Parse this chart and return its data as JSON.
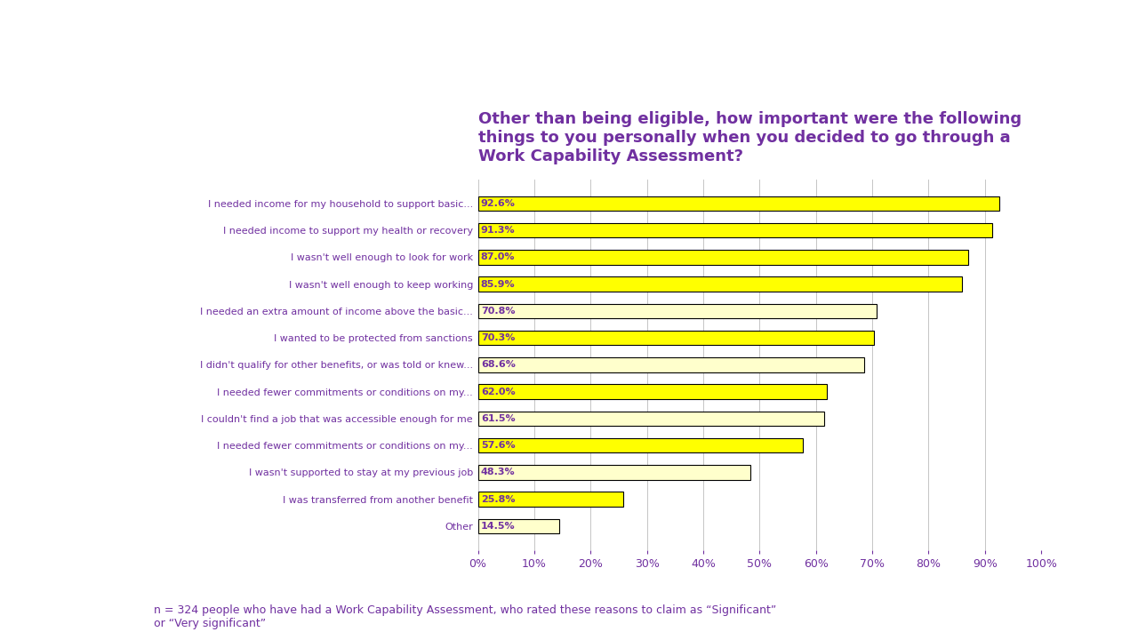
{
  "title": "Other than being eligible, how important were the following\nthings to you personally when you decided to go through a\nWork Capability Assessment?",
  "title_color": "#7030A0",
  "title_fontsize": 13,
  "categories": [
    "I needed income for my household to support basic...",
    "I needed income to support my health or recovery",
    "I wasn't well enough to look for work",
    "I wasn't well enough to keep working",
    "I needed an extra amount of income above the basic...",
    "I wanted to be protected from sanctions",
    "I didn't qualify for other benefits, or was told or knew...",
    "I needed fewer commitments or conditions on my...",
    "I couldn't find a job that was accessible enough for me",
    "I needed fewer commitments or conditions on my...",
    "I wasn't supported to stay at my previous job",
    "I was transferred from another benefit",
    "Other"
  ],
  "values": [
    92.6,
    91.3,
    87.0,
    85.9,
    70.8,
    70.3,
    68.6,
    62.0,
    61.5,
    57.6,
    48.3,
    25.8,
    14.5
  ],
  "bar_colors": [
    "#FFFF00",
    "#FFFF00",
    "#FFFF00",
    "#FFFF00",
    "#FFFFCC",
    "#FFFF00",
    "#FFFFCC",
    "#FFFF00",
    "#FFFFCC",
    "#FFFF00",
    "#FFFFCC",
    "#FFFF00",
    "#FFFFCC"
  ],
  "bar_edge_color": "#000000",
  "bar_height": 0.55,
  "tick_color": "#7030A0",
  "grid_color": "#BBBBBB",
  "footnote": "n = 324 people who have had a Work Capability Assessment, who rated these reasons to claim as “Significant”\nor “Very significant”",
  "footnote_color": "#7030A0",
  "footnote_fontsize": 9,
  "value_label_fontsize": 8,
  "value_label_color": "#7030A0",
  "category_fontsize": 8,
  "category_color": "#7030A0",
  "xlim": [
    0,
    100
  ],
  "xtick_values": [
    0,
    10,
    20,
    30,
    40,
    50,
    60,
    70,
    80,
    90,
    100
  ],
  "xtick_labels": [
    "0%",
    "10%",
    "20%",
    "30%",
    "40%",
    "50%",
    "60%",
    "70%",
    "80%",
    "90%",
    "100%"
  ],
  "background_color": "#FFFFFF"
}
